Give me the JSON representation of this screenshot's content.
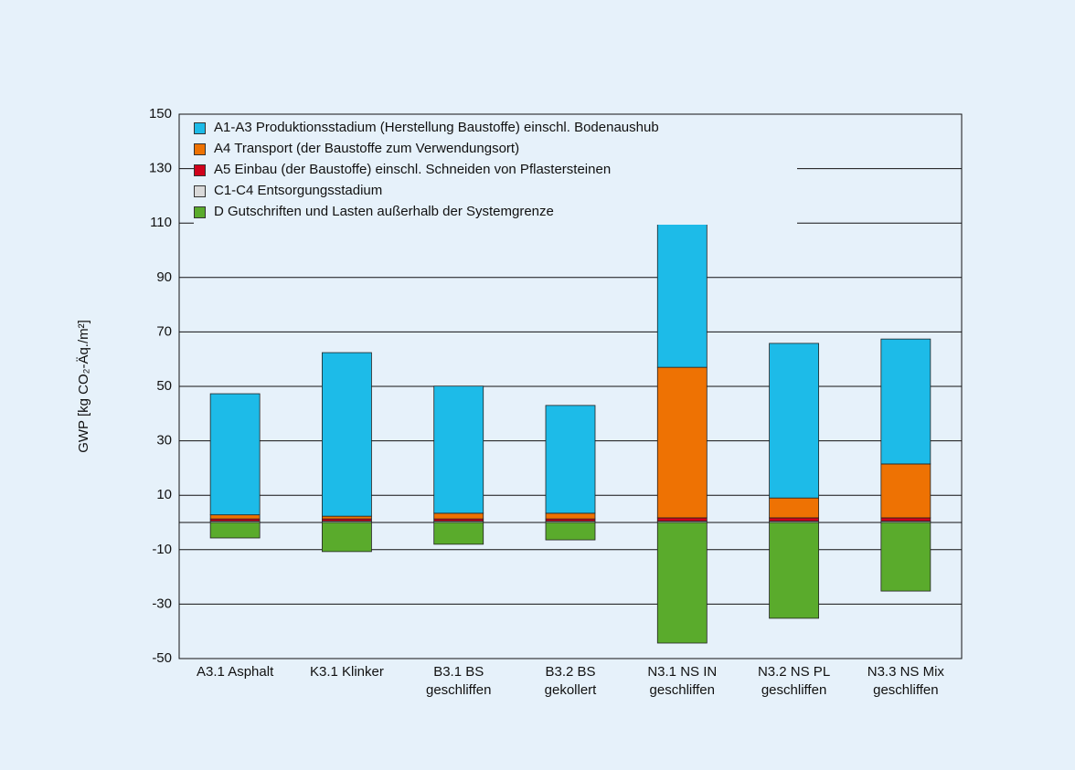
{
  "chart_data": {
    "type": "stacked_bar",
    "y_label": "GWP [kg CO₂-Äq./m²]",
    "categories": [
      [
        "A3.1 Asphalt"
      ],
      [
        "K3.1 Klinker"
      ],
      [
        "B3.1 BS",
        "geschliffen"
      ],
      [
        "B3.2 BS",
        "gekollert"
      ],
      [
        "N3.1 NS IN",
        "geschliffen"
      ],
      [
        "N3.2 NS PL",
        "geschliffen"
      ],
      [
        "N3.3 NS Mix",
        "geschliffen"
      ]
    ],
    "series": [
      {
        "name": "A1-A3 Produktionsstadium (Herstellung Baustoffe) einschl. Bodenaushub",
        "color": "#1dbbe8",
        "values": [
          44.5,
          60.1,
          46.7,
          39.6,
          67.2,
          56.8,
          45.9
        ]
      },
      {
        "name": "A4 Transport (der Baustoffe zum Verwendungsort)",
        "color": "#ee7203",
        "values": [
          1.5,
          1.0,
          2.1,
          2.1,
          55.3,
          7.3,
          19.8
        ]
      },
      {
        "name": "A5 Einbau (der Baustoffe) einschl. Schneiden von Pflastersteinen",
        "color": "#d0021b",
        "values": [
          0.8,
          0.8,
          0.8,
          0.8,
          1.2,
          1.2,
          1.2
        ]
      },
      {
        "name": "C1-C4 Entsorgungsstadium",
        "color": "#d9d9d9",
        "values": [
          0.5,
          0.5,
          0.5,
          0.5,
          0.5,
          0.5,
          0.5
        ]
      },
      {
        "name": "D Gutschriften und Lasten außerhalb der Systemgrenze",
        "color": "#5aab2c",
        "values": [
          -5.7,
          -10.7,
          -8.0,
          -6.4,
          -44.3,
          -35.2,
          -25.2
        ]
      }
    ],
    "stack_order": [
      3,
      2,
      1,
      0,
      4
    ],
    "ylim": [
      -50,
      150
    ],
    "yticks": [
      -50,
      -30,
      -10,
      10,
      30,
      50,
      70,
      90,
      110,
      130,
      150
    ],
    "grid": true
  }
}
